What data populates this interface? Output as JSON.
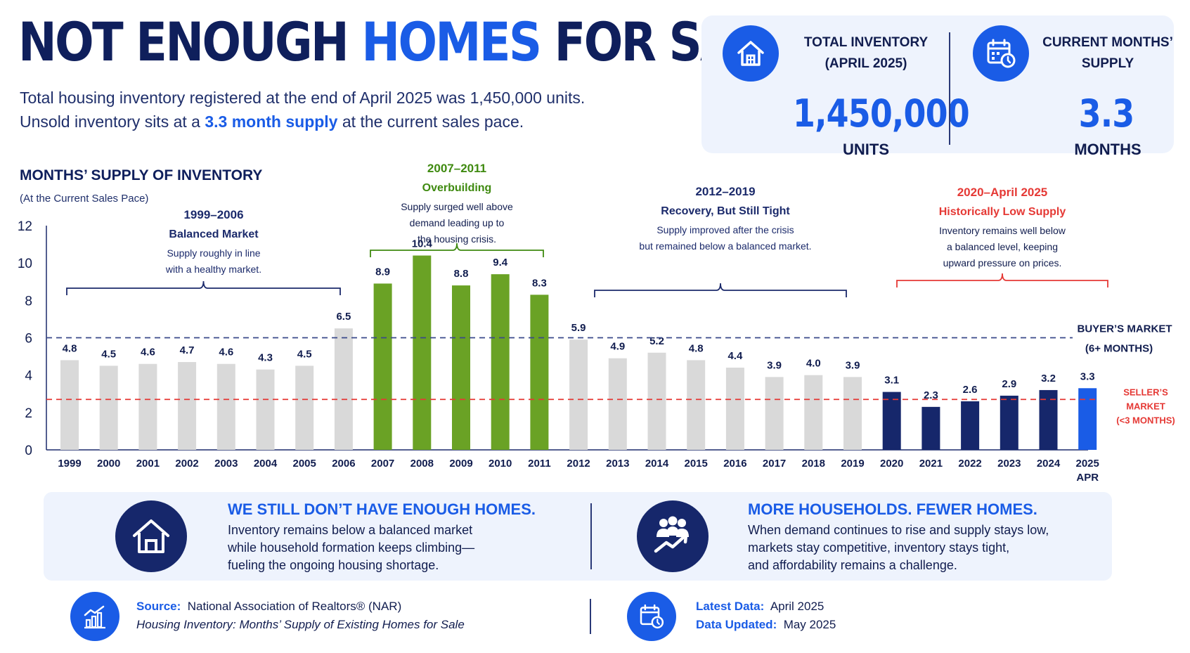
{
  "header": {
    "title_part1": "NOT ENOUGH ",
    "title_highlight": "HOMES",
    "title_part2": " FOR SALE",
    "line1": "Total housing inventory registered at the end of April 2025 was 1,450,000 units.",
    "line2_pre": "Unsold inventory sits at a ",
    "line2_highlight": "3.3 month supply",
    "line2_post": " at the current sales pace."
  },
  "stats": {
    "inventory": {
      "label_line1": "TOTAL INVENTORY",
      "label_line2": "(APRIL 2025)",
      "value": "1,450,000",
      "unit": "UNITS",
      "icon": "house-icon"
    },
    "supply": {
      "label_line1": "CURRENT MONTHS’",
      "label_line2": "SUPPLY",
      "value": "3.3",
      "unit": "MONTHS",
      "icon": "calendar-clock-icon"
    }
  },
  "chart_data": {
    "type": "bar",
    "title": "MONTHS’ SUPPLY OF INVENTORY",
    "subtitle": "(At the Current Sales Pace)",
    "categories": [
      "1999",
      "2000",
      "2001",
      "2002",
      "2003",
      "2004",
      "2005",
      "2006",
      "2007",
      "2008",
      "2009",
      "2010",
      "2011",
      "2012",
      "2013",
      "2014",
      "2015",
      "2016",
      "2017",
      "2018",
      "2019",
      "2020",
      "2021",
      "2022",
      "2023",
      "2024",
      "2025"
    ],
    "category_sublabels": {
      "2025": "APR"
    },
    "values": [
      4.8,
      4.5,
      4.6,
      4.7,
      4.6,
      4.3,
      4.5,
      6.5,
      8.9,
      10.4,
      8.8,
      9.4,
      8.3,
      5.9,
      4.9,
      5.2,
      4.8,
      4.4,
      3.9,
      4.0,
      3.9,
      3.1,
      2.3,
      2.6,
      2.9,
      3.2,
      3.3
    ],
    "ylim": [
      0,
      12
    ],
    "yticks": [
      0,
      2,
      4,
      6,
      8,
      10,
      12
    ],
    "grid": false,
    "colors": {
      "balanced": "#d9d9d9",
      "overbuilding": "#6aa225",
      "low_supply": "#16276b",
      "current": "#1a5ce6"
    },
    "reference_lines": [
      {
        "value": 6,
        "label_line1": "BUYER’S MARKET",
        "label_line2": "(6+ MONTHS)",
        "color": "#3a4a8a"
      },
      {
        "value": 3,
        "label_line1": "SELLER’S",
        "label_line2": "MARKET",
        "label_line3": "(<3 MONTHS)",
        "color": "#e53935"
      }
    ],
    "periods": [
      {
        "range": "1999–2006",
        "heading": "Balanced Market",
        "desc1": "Supply roughly in line",
        "desc2": "with a healthy market.",
        "desc3": "",
        "color": "#1b2a6b",
        "heading_color": "#1b2a6b"
      },
      {
        "range": "2007–2011",
        "heading": "Overbuilding",
        "desc1": "Supply surged well above",
        "desc2": "demand leading up to",
        "desc3": "the housing crisis.",
        "color": "#3f8a10",
        "heading_color": "#3f8a10"
      },
      {
        "range": "2012–2019",
        "heading": "Recovery, But Still Tight",
        "desc1": "Supply improved after the crisis",
        "desc2": "but remained below a balanced market.",
        "desc3": "",
        "color": "#1b2a6b",
        "heading_color": "#1b2a6b"
      },
      {
        "range": "2020–April 2025",
        "heading": "Historically Low Supply",
        "desc1": "Inventory remains well below",
        "desc2": "a balanced level, keeping",
        "desc3": "upward pressure on prices.",
        "color": "#e53935",
        "heading_color": "#e53935"
      }
    ]
  },
  "panels": {
    "left": {
      "heading": "WE STILL DON’T HAVE ENOUGH HOMES.",
      "line1": "Inventory remains below a balanced market",
      "line2": "while household formation keeps climbing—",
      "line3": "fueling the ongoing housing shortage.",
      "icon": "house-icon"
    },
    "right": {
      "heading": "MORE HOUSEHOLDS. FEWER HOMES.",
      "line1": "When demand continues to rise and supply stays low,",
      "line2": "markets stay competitive, inventory stays tight,",
      "line3": "and affordability remains a challenge.",
      "icon": "people-growth-icon"
    }
  },
  "footer": {
    "source_label": "Source:",
    "source_value": "National Association of Realtors® (NAR)",
    "source_title": "Housing Inventory: Months’ Supply of Existing Homes for Sale",
    "latest_label": "Latest Data:",
    "latest_value": "April 2025",
    "updated_label": "Data Updated:",
    "updated_value": "May 2025"
  }
}
